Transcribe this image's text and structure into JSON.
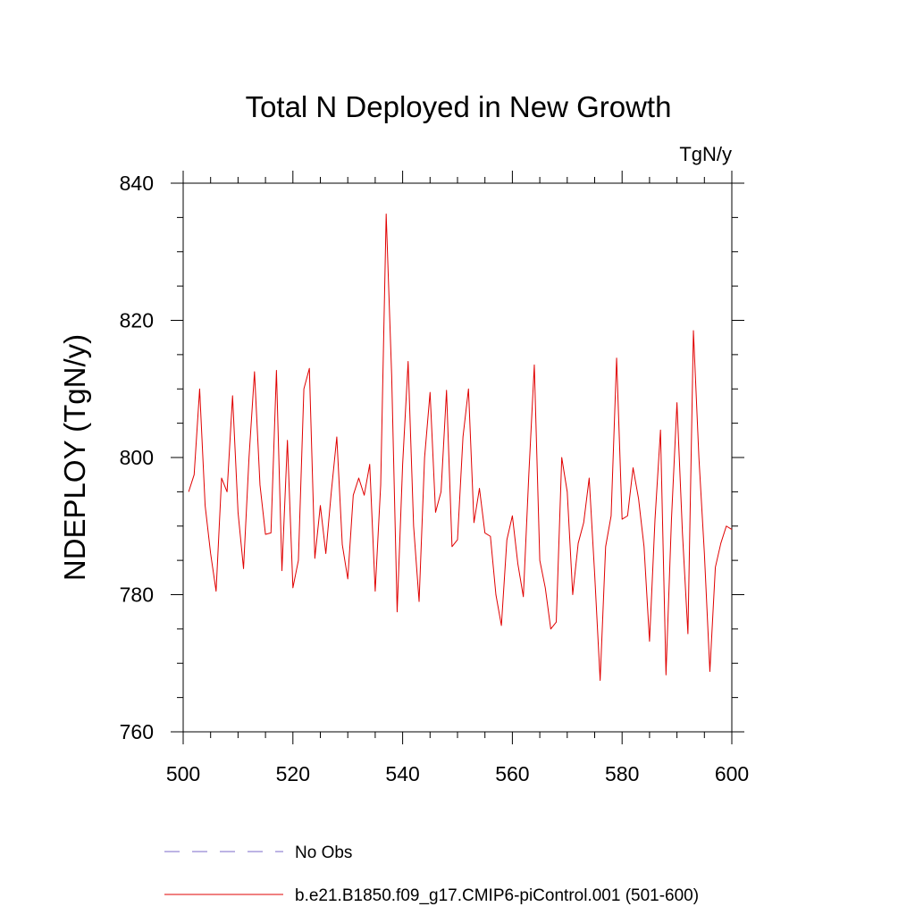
{
  "chart_data": {
    "type": "line",
    "title": "Total N Deployed in New Growth",
    "units": "TgN/y",
    "xlabel": "",
    "ylabel": "NDEPLOY  (TgN/y)",
    "xlim": [
      500,
      600
    ],
    "ylim": [
      760,
      840
    ],
    "xticks": [
      500,
      520,
      540,
      560,
      580,
      600
    ],
    "yticks": [
      760,
      780,
      800,
      820,
      840
    ],
    "xminor_step": 5,
    "yminor_step": 5,
    "grid": false,
    "legend": [
      {
        "label": "No Obs",
        "color": "#7b68c8",
        "dash": true
      },
      {
        "label": "b.e21.B1850.f09_g17.CMIP6-piControl.001 (501-600)",
        "color": "#e00000",
        "dash": false
      }
    ],
    "series": [
      {
        "name": "b.e21.B1850.f09_g17.CMIP6-piControl.001 (501-600)",
        "color": "#e00000",
        "x": [
          501,
          502,
          503,
          504,
          505,
          506,
          507,
          508,
          509,
          510,
          511,
          512,
          513,
          514,
          515,
          516,
          517,
          518,
          519,
          520,
          521,
          522,
          523,
          524,
          525,
          526,
          527,
          528,
          529,
          530,
          531,
          532,
          533,
          534,
          535,
          536,
          537,
          538,
          539,
          540,
          541,
          542,
          543,
          544,
          545,
          546,
          547,
          548,
          549,
          550,
          551,
          552,
          553,
          554,
          555,
          556,
          557,
          558,
          559,
          560,
          561,
          562,
          563,
          564,
          565,
          566,
          567,
          568,
          569,
          570,
          571,
          572,
          573,
          574,
          575,
          576,
          577,
          578,
          579,
          580,
          581,
          582,
          583,
          584,
          585,
          586,
          587,
          588,
          589,
          590,
          591,
          592,
          593,
          594,
          595,
          596,
          597,
          598,
          599,
          600
        ],
        "values": [
          795,
          797.5,
          810,
          793,
          786,
          780.5,
          797,
          795,
          809,
          792,
          783.8,
          800,
          812.5,
          796,
          788.8,
          789,
          812.7,
          783.5,
          802.5,
          781,
          785,
          810,
          813,
          785.3,
          793,
          786,
          795,
          803,
          787.3,
          782.3,
          794.5,
          797,
          794.5,
          799,
          780.5,
          796,
          835.5,
          812,
          777.5,
          799,
          814,
          790,
          779,
          800,
          809.5,
          792,
          795,
          809.8,
          787,
          788,
          803,
          810,
          790.5,
          795.5,
          789,
          788.5,
          780,
          775.5,
          788,
          791.5,
          784.5,
          779.7,
          797.5,
          813.5,
          785,
          781,
          775,
          776,
          800,
          795,
          780,
          787.5,
          790.5,
          797,
          783,
          767.5,
          787,
          791.5,
          814.5,
          791,
          791.5,
          798.5,
          794,
          787,
          773.2,
          791,
          804,
          768.3,
          791,
          808,
          789,
          774.3,
          818.5,
          800,
          786,
          768.8,
          784,
          787.5,
          790,
          789.5
        ]
      }
    ]
  }
}
